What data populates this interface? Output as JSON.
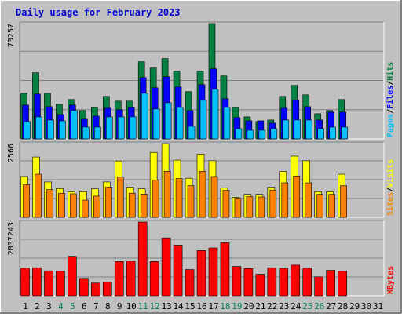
{
  "chart_data": {
    "type": "bar",
    "title": "Daily usage for February 2023",
    "categories": [
      "1",
      "2",
      "3",
      "4",
      "5",
      "6",
      "7",
      "8",
      "9",
      "10",
      "11",
      "12",
      "13",
      "14",
      "15",
      "16",
      "17",
      "18",
      "19",
      "20",
      "21",
      "22",
      "23",
      "24",
      "25",
      "26",
      "27",
      "28",
      "29",
      "30",
      "31"
    ],
    "weekend_days": [
      4,
      5,
      11,
      12,
      18,
      19,
      25,
      26
    ],
    "colors": {
      "title": "#0000cc",
      "background": "#c0c0c0",
      "hits": "#008040",
      "files": "#0000ff",
      "pages": "#00c0ff",
      "visits": "#ffff00",
      "sites": "#ff8000",
      "kbytes": "#ff0000",
      "weekend_label": "#00805c",
      "weekday_label": "#000000"
    },
    "panels": [
      {
        "name": "hits-files-pages",
        "max_label": "73257",
        "ymax": 73257,
        "legend": [
          "Pages",
          "/",
          "Files",
          "/",
          "Hits"
        ],
        "legend_colors": [
          "#00c0ff",
          "#000000",
          "#0000ff",
          "#000000",
          "#008040"
        ],
        "series": [
          {
            "name": "Hits",
            "values": [
              29000,
              42000,
              29000,
              22000,
              25000,
              18000,
              20000,
              27000,
              24000,
              24000,
              49000,
              45000,
              51000,
              43000,
              30000,
              43000,
              73257,
              40000,
              20000,
              14000,
              11000,
              12000,
              27000,
              34000,
              28000,
              16000,
              18000,
              25000,
              0,
              0,
              0
            ]
          },
          {
            "name": "Files",
            "values": [
              21500,
              28500,
              20500,
              15500,
              21500,
              12500,
              14500,
              19500,
              18500,
              20000,
              39000,
              32500,
              39500,
              33000,
              18000,
              34500,
              44500,
              25500,
              13500,
              11500,
              11500,
              10000,
              19500,
              24500,
              20500,
              12000,
              17000,
              17000,
              0,
              0,
              0
            ]
          },
          {
            "name": "Pages",
            "values": [
              11000,
              14000,
              12000,
              11500,
              18000,
              7500,
              7500,
              14000,
              14000,
              14000,
              29000,
              19000,
              23000,
              20000,
              8000,
              24500,
              31500,
              20000,
              6500,
              5500,
              5500,
              6500,
              12000,
              12000,
              12000,
              6500,
              7500,
              7500,
              0,
              0,
              0
            ]
          }
        ]
      },
      {
        "name": "visits-sites",
        "max_label": "2566",
        "ymax": 2566,
        "legend": [
          "Sites",
          "/",
          "Visits"
        ],
        "legend_colors": [
          "#ff8000",
          "#000000",
          "#ffff00"
        ],
        "series": [
          {
            "name": "Visits",
            "values": [
              1420,
              2100,
              1230,
              1000,
              890,
              890,
              990,
              1230,
              1960,
              1050,
              990,
              2260,
              2566,
              1990,
              1360,
              2200,
              1970,
              1020,
              700,
              800,
              800,
              1050,
              1600,
              2130,
              1970,
              890,
              890,
              1500,
              0,
              0,
              0
            ]
          },
          {
            "name": "Sites",
            "values": [
              1140,
              1500,
              970,
              840,
              820,
              600,
              740,
              1050,
              1400,
              840,
              810,
              1300,
              1600,
              1350,
              1100,
              1600,
              1420,
              940,
              670,
              720,
              710,
              950,
              1200,
              1440,
              1200,
              800,
              800,
              1100,
              0,
              0,
              0
            ]
          }
        ]
      },
      {
        "name": "kbytes",
        "max_label": "2837243",
        "ymax": 2837243,
        "legend": [
          "KBytes"
        ],
        "legend_colors": [
          "#ff0000"
        ],
        "series": [
          {
            "name": "KBytes",
            "values": [
              1070000,
              1080000,
              960000,
              940000,
              1520000,
              670000,
              490000,
              520000,
              1320000,
              1340000,
              2837243,
              1320000,
              2230000,
              1950000,
              1010000,
              1740000,
              1840000,
              2040000,
              1130000,
              1050000,
              830000,
              1080000,
              1060000,
              1180000,
              1070000,
              730000,
              980000,
              940000,
              0,
              0,
              0
            ]
          }
        ]
      }
    ]
  }
}
